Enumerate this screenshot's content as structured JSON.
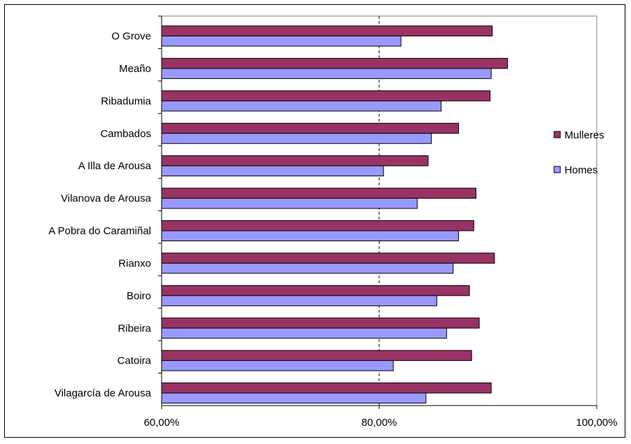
{
  "chart_data": {
    "type": "bar",
    "orientation": "horizontal",
    "categories": [
      "O Grove",
      "Meaño",
      "Ribadumia",
      "Cambados",
      "A Illa de Arousa",
      "Vilanova de Arousa",
      "A Pobra do Caramiñal",
      "Rianxo",
      "Boiro",
      "Ribeira",
      "Catoira",
      "Vilagarcía de Arousa"
    ],
    "series": [
      {
        "name": "Mulleres",
        "color": "#993366",
        "values": [
          90.4,
          91.8,
          90.2,
          87.3,
          84.5,
          88.9,
          88.7,
          90.6,
          88.3,
          89.2,
          88.5,
          90.3
        ]
      },
      {
        "name": "Homes",
        "color": "#9999ff",
        "values": [
          82.0,
          90.3,
          85.7,
          84.8,
          80.4,
          83.5,
          87.3,
          86.8,
          85.3,
          86.2,
          81.3,
          84.3
        ]
      }
    ],
    "xlim": [
      60,
      100
    ],
    "x_ticks": [
      60,
      80,
      100
    ],
    "x_tick_labels": [
      "60,00%",
      "80,00%",
      "100,00%"
    ],
    "grid": "vertical dashed",
    "legend_position": "right",
    "legend": [
      "Mulleres",
      "Homes"
    ]
  }
}
